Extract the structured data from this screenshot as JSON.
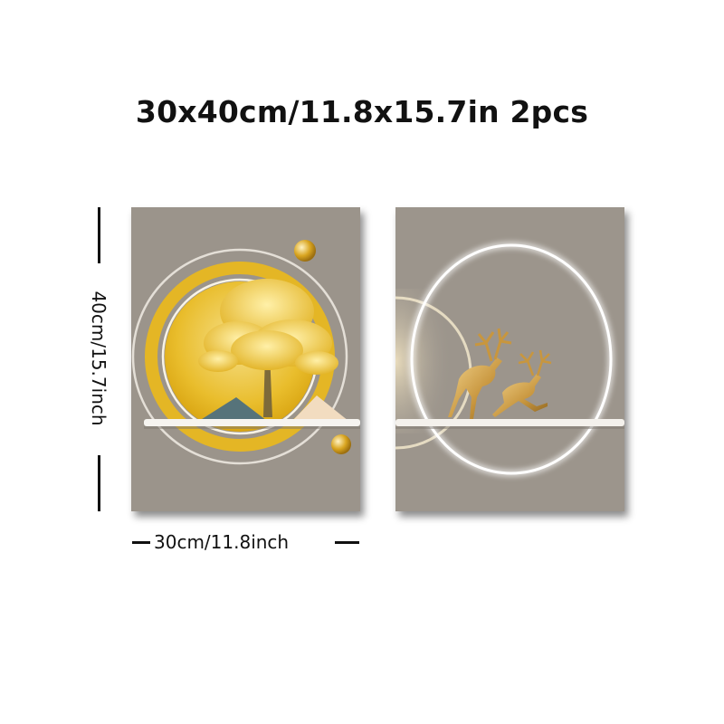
{
  "title": "30x40cm/11.8x15.7in 2pcs",
  "dimensions": {
    "height_label": "40cm/15.7inch",
    "width_label": "30cm/11.8inch"
  },
  "panels": [
    {
      "name": "golden-tree-panel",
      "background": "#9b948b",
      "accent": "#e2b21d"
    },
    {
      "name": "deer-panel",
      "background": "#9c958c",
      "accent": "#c8963e"
    }
  ]
}
